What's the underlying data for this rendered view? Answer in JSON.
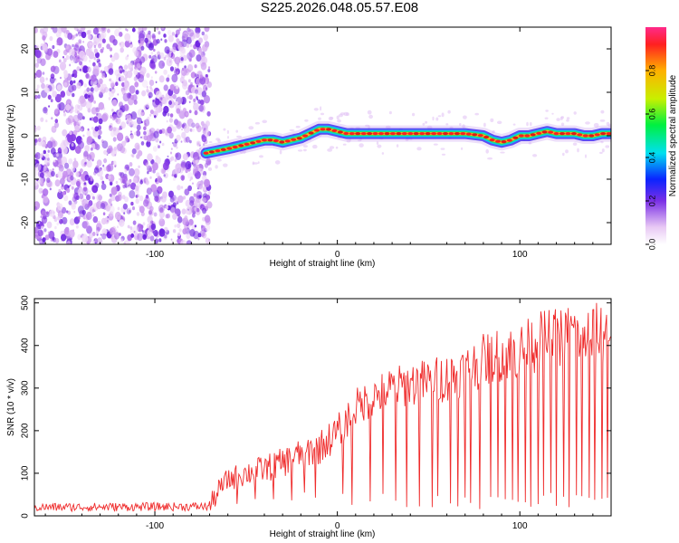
{
  "title": "S225.2026.048.05.57.E08",
  "chart_data": [
    {
      "type": "heatmap",
      "xlabel": "Height of straight line (km)",
      "ylabel": "Frequency (Hz)",
      "xlim": [
        -166,
        150
      ],
      "ylim": [
        -25,
        25
      ],
      "xticks": [
        -100,
        0,
        100
      ],
      "yticks": [
        -20,
        -10,
        0,
        10,
        20
      ],
      "track": {
        "x": [
          -72,
          -66,
          -60,
          -55,
          -50,
          -45,
          -40,
          -35,
          -30,
          -25,
          -20,
          -15,
          -10,
          -5,
          0,
          5,
          10,
          20,
          30,
          40,
          50,
          60,
          70,
          80,
          85,
          90,
          95,
          100,
          105,
          110,
          115,
          120,
          125,
          130,
          135,
          140,
          145,
          150
        ],
        "y": [
          -4,
          -3.5,
          -3,
          -2.5,
          -2,
          -1.5,
          -1,
          -1,
          -1.5,
          -1,
          -0.5,
          0.5,
          1.5,
          1.5,
          1,
          0.5,
          0.5,
          0.5,
          0.5,
          0.5,
          0.5,
          0.5,
          0.5,
          0,
          -1,
          -1.5,
          -1,
          0,
          0,
          0.5,
          1,
          0.5,
          0.5,
          0.5,
          0,
          0,
          0.5,
          0.5
        ]
      },
      "noise_region": [
        -166,
        -70
      ],
      "colorbar": {
        "label": "Normalized spectral amplitude",
        "range": [
          0,
          1
        ],
        "ticks": [
          0.0,
          0.2,
          0.4,
          0.6,
          0.8
        ],
        "tick_labels": [
          "0.0",
          "0.2",
          "0.4",
          "0.6",
          "0.8"
        ]
      }
    },
    {
      "type": "line",
      "xlabel": "Height of straight line (km)",
      "ylabel": "SNR (10 * v/v)",
      "xlim": [
        -166,
        150
      ],
      "ylim": [
        0,
        510
      ],
      "xticks": [
        -100,
        0,
        100
      ],
      "yticks": [
        0,
        100,
        200,
        300,
        400,
        500
      ],
      "color": "#ef2b2b",
      "envelope": {
        "x": [
          -166,
          -70,
          -65,
          -60,
          -50,
          -40,
          -30,
          -20,
          -10,
          0,
          10,
          20,
          30,
          40,
          50,
          60,
          70,
          80,
          90,
          100,
          110,
          120,
          130,
          140,
          150
        ],
        "y": [
          20,
          22,
          60,
          85,
          100,
          110,
          125,
          145,
          160,
          195,
          255,
          280,
          300,
          310,
          315,
          325,
          340,
          365,
          380,
          385,
          410,
          420,
          430,
          420,
          440
        ]
      },
      "dropouts": [
        -55,
        -45,
        -35,
        -25,
        -18,
        -12,
        3,
        8,
        18,
        25,
        32,
        38,
        45,
        52,
        55,
        62,
        66,
        70,
        73,
        78,
        84,
        88,
        92,
        96,
        99,
        103,
        106,
        110,
        113,
        117,
        120,
        124,
        127,
        131,
        134,
        138,
        141,
        145,
        148
      ]
    }
  ]
}
